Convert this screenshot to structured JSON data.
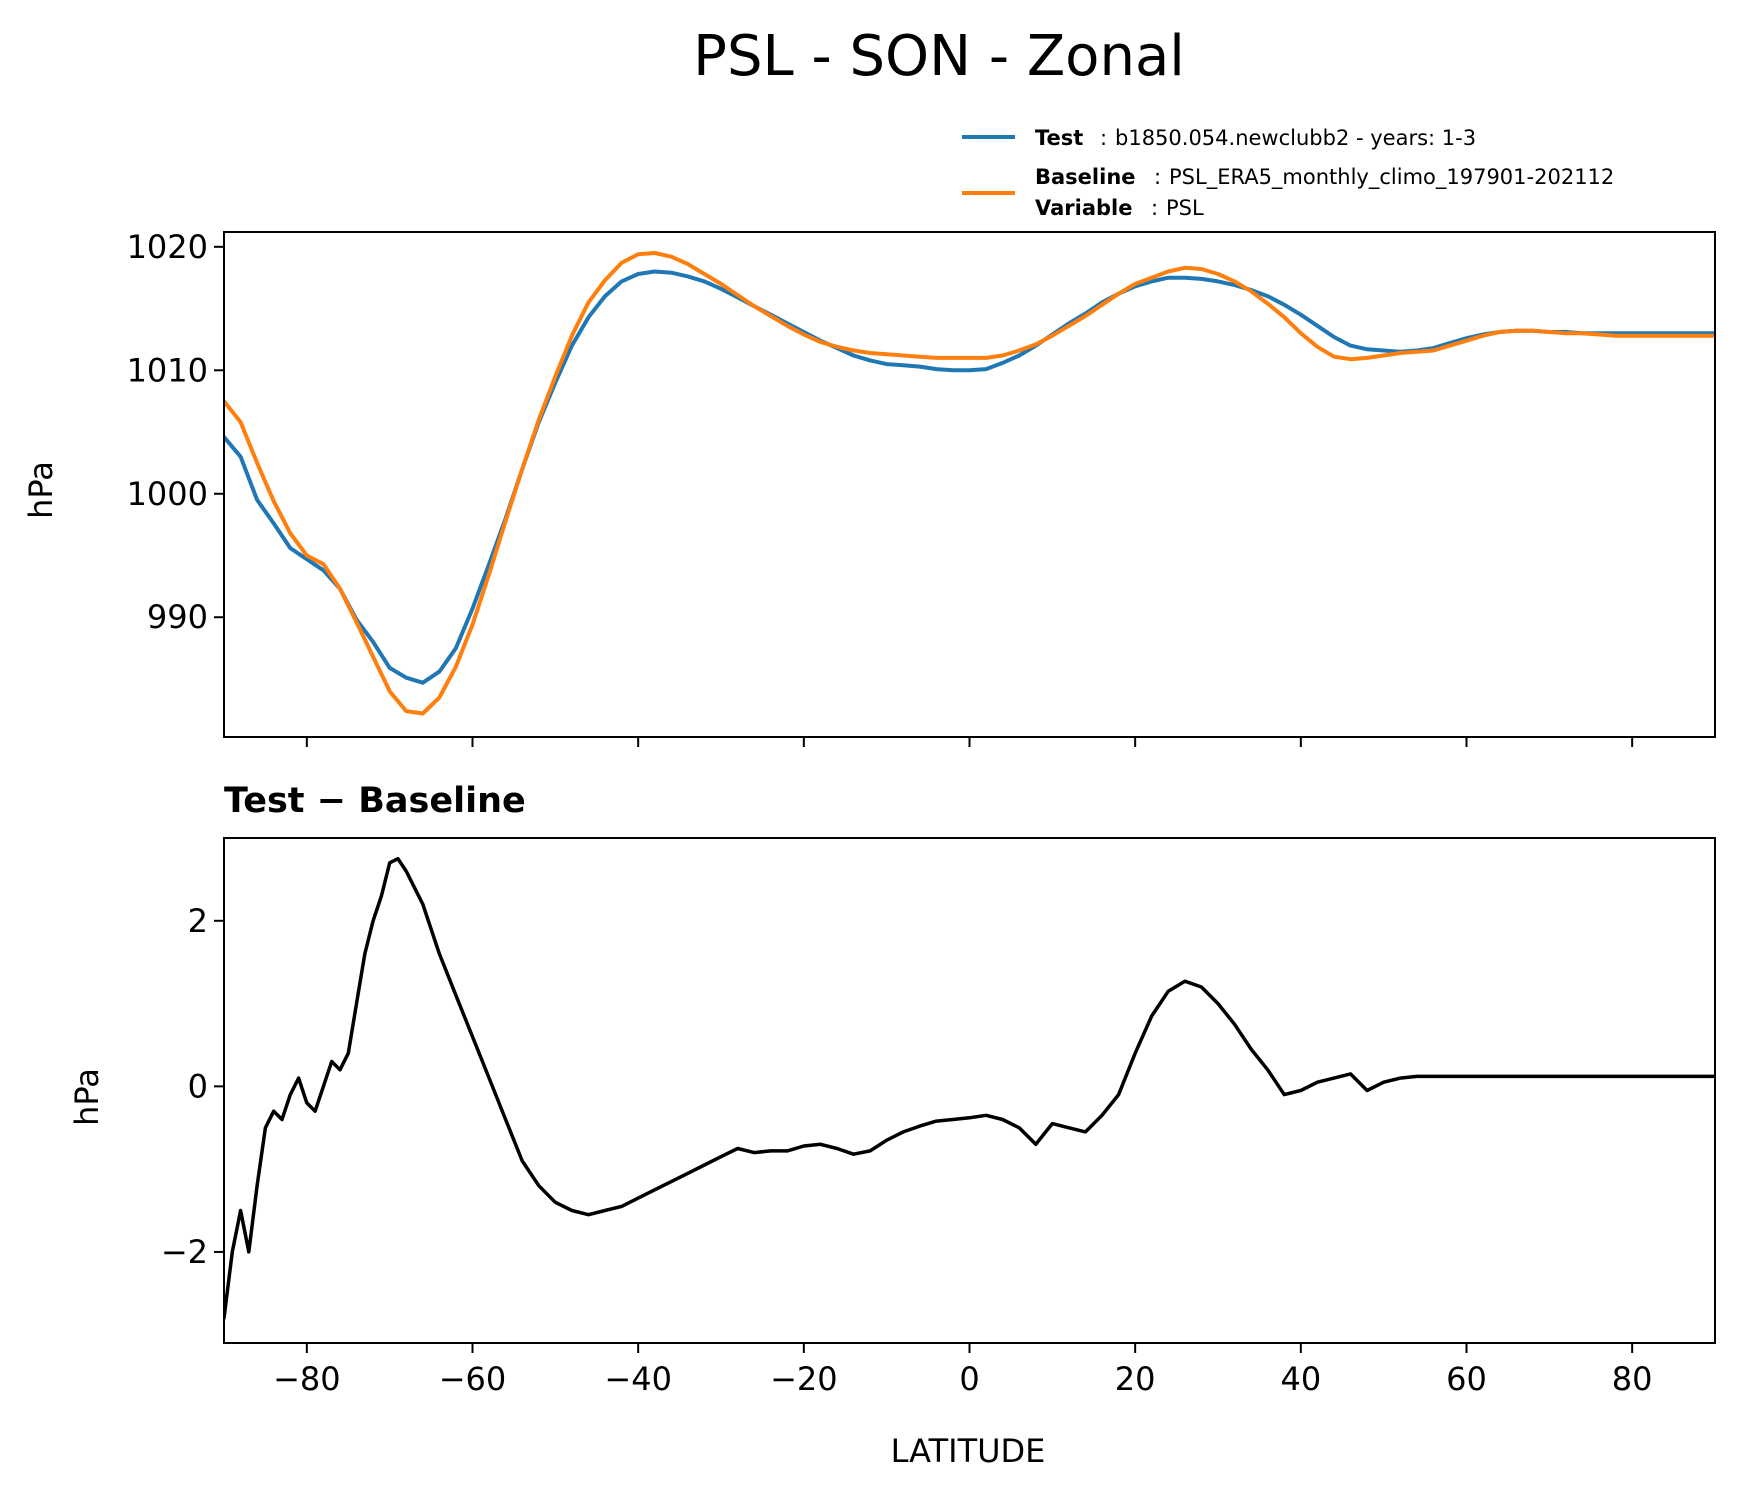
{
  "figure": {
    "title": "PSL - SON - Zonal"
  },
  "legend": {
    "entries": [
      {
        "key": "Test",
        "sep": ":",
        "value": "b1850.054.newclubb2 - years: 1-3",
        "color": "#1f77b4"
      },
      {
        "key": "Baseline",
        "sep": ":",
        "value": "PSL_ERA5_monthly_climo_197901-202112",
        "color": "#ff7f0e"
      },
      {
        "key": "Variable",
        "sep": ":",
        "value": "PSL"
      }
    ]
  },
  "chart_data": [
    {
      "type": "line",
      "title": "",
      "xlabel": "",
      "ylabel": "hPa",
      "xlim": [
        -90,
        90
      ],
      "ylim": [
        980.3,
        1021.2
      ],
      "xticks": [
        -80,
        -60,
        -40,
        -20,
        0,
        20,
        40,
        60,
        80
      ],
      "yticks": [
        990,
        1000,
        1010,
        1020
      ],
      "ytick_labels": [
        "990",
        "1000",
        "1010",
        "1020"
      ],
      "series": [
        {
          "name": "Test",
          "color": "#1f77b4",
          "x": [
            -90,
            -88,
            -86,
            -84,
            -82,
            -80,
            -78,
            -76,
            -74,
            -72,
            -70,
            -68,
            -66,
            -64,
            -62,
            -60,
            -58,
            -56,
            -54,
            -52,
            -50,
            -48,
            -46,
            -44,
            -42,
            -40,
            -38,
            -36,
            -34,
            -32,
            -30,
            -28,
            -26,
            -24,
            -22,
            -20,
            -18,
            -16,
            -14,
            -12,
            -10,
            -8,
            -6,
            -4,
            -2,
            0,
            2,
            4,
            6,
            8,
            10,
            12,
            14,
            16,
            18,
            20,
            22,
            24,
            26,
            28,
            30,
            32,
            34,
            36,
            38,
            40,
            42,
            44,
            46,
            48,
            50,
            52,
            54,
            56,
            58,
            60,
            62,
            64,
            66,
            68,
            70,
            72,
            74,
            76,
            78,
            80,
            82,
            84,
            86,
            88,
            90
          ],
          "values": [
            1004.6,
            1003.0,
            999.5,
            997.6,
            995.6,
            994.7,
            993.8,
            992.3,
            989.8,
            988.0,
            985.9,
            985.1,
            984.7,
            985.6,
            987.5,
            990.7,
            994.3,
            998.0,
            1002.0,
            1005.8,
            1009.0,
            1012.0,
            1014.3,
            1016.0,
            1017.2,
            1017.8,
            1018.0,
            1017.9,
            1017.6,
            1017.2,
            1016.6,
            1015.9,
            1015.2,
            1014.5,
            1013.8,
            1013.1,
            1012.4,
            1011.8,
            1011.2,
            1010.8,
            1010.5,
            1010.4,
            1010.3,
            1010.1,
            1010.0,
            1010.0,
            1010.1,
            1010.6,
            1011.2,
            1012.0,
            1012.9,
            1013.8,
            1014.6,
            1015.5,
            1016.2,
            1016.8,
            1017.2,
            1017.5,
            1017.5,
            1017.4,
            1017.2,
            1016.9,
            1016.5,
            1016.0,
            1015.3,
            1014.5,
            1013.6,
            1012.7,
            1012.0,
            1011.7,
            1011.6,
            1011.5,
            1011.6,
            1011.8,
            1012.2,
            1012.6,
            1012.9,
            1013.1,
            1013.2,
            1013.2,
            1013.1,
            1013.1,
            1013.0,
            1013.0,
            1013.0,
            1013.0,
            1013.0,
            1013.0,
            1013.0,
            1013.0,
            1013.0
          ]
        },
        {
          "name": "Baseline",
          "color": "#ff7f0e",
          "x": [
            -90,
            -88,
            -86,
            -84,
            -82,
            -80,
            -78,
            -76,
            -74,
            -72,
            -70,
            -68,
            -66,
            -64,
            -62,
            -60,
            -58,
            -56,
            -54,
            -52,
            -50,
            -48,
            -46,
            -44,
            -42,
            -40,
            -38,
            -36,
            -34,
            -32,
            -30,
            -28,
            -26,
            -24,
            -22,
            -20,
            -18,
            -16,
            -14,
            -12,
            -10,
            -8,
            -6,
            -4,
            -2,
            0,
            2,
            4,
            6,
            8,
            10,
            12,
            14,
            16,
            18,
            20,
            22,
            24,
            26,
            28,
            30,
            32,
            34,
            36,
            38,
            40,
            42,
            44,
            46,
            48,
            50,
            52,
            54,
            56,
            58,
            60,
            62,
            64,
            66,
            68,
            70,
            72,
            74,
            76,
            78,
            80,
            82,
            84,
            86,
            88,
            90
          ],
          "values": [
            1007.5,
            1005.8,
            1002.5,
            999.4,
            996.8,
            995.0,
            994.3,
            992.3,
            989.6,
            986.8,
            984.0,
            982.4,
            982.2,
            983.5,
            986.0,
            989.4,
            993.5,
            997.8,
            1002.0,
            1006.0,
            1009.5,
            1012.8,
            1015.5,
            1017.3,
            1018.7,
            1019.4,
            1019.5,
            1019.2,
            1018.6,
            1017.8,
            1017.0,
            1016.1,
            1015.2,
            1014.4,
            1013.6,
            1012.9,
            1012.3,
            1011.9,
            1011.6,
            1011.4,
            1011.3,
            1011.2,
            1011.1,
            1011.0,
            1011.0,
            1011.0,
            1011.0,
            1011.2,
            1011.6,
            1012.1,
            1012.8,
            1013.6,
            1014.4,
            1015.3,
            1016.2,
            1017.0,
            1017.5,
            1018.0,
            1018.3,
            1018.2,
            1017.8,
            1017.2,
            1016.4,
            1015.4,
            1014.3,
            1013.0,
            1011.9,
            1011.1,
            1010.9,
            1011.0,
            1011.2,
            1011.4,
            1011.5,
            1011.6,
            1012.0,
            1012.4,
            1012.8,
            1013.1,
            1013.2,
            1013.2,
            1013.1,
            1013.0,
            1013.0,
            1012.9,
            1012.8,
            1012.8,
            1012.8,
            1012.8,
            1012.8,
            1012.8,
            1012.8
          ]
        }
      ]
    },
    {
      "type": "line",
      "title": "Test − Baseline",
      "xlabel": "LATITUDE",
      "ylabel": "hPa",
      "xlim": [
        -90,
        90
      ],
      "ylim": [
        -3.1,
        3.0
      ],
      "xticks": [
        -80,
        -60,
        -40,
        -20,
        0,
        20,
        40,
        60,
        80
      ],
      "xtick_labels": [
        "−80",
        "−60",
        "−40",
        "−20",
        "0",
        "20",
        "40",
        "60",
        "80"
      ],
      "yticks": [
        -2,
        0,
        2
      ],
      "ytick_labels": [
        "−2",
        "0",
        "2"
      ],
      "series": [
        {
          "name": "Test − Baseline",
          "color": "#000000",
          "x": [
            -90,
            -89,
            -88,
            -87,
            -86,
            -85,
            -84,
            -83,
            -82,
            -81,
            -80,
            -79,
            -78,
            -77,
            -76,
            -75,
            -74,
            -73,
            -72,
            -71,
            -70,
            -69,
            -68,
            -67,
            -66,
            -65,
            -64,
            -62,
            -60,
            -58,
            -56,
            -54,
            -52,
            -50,
            -48,
            -46,
            -44,
            -42,
            -40,
            -38,
            -36,
            -34,
            -32,
            -30,
            -28,
            -26,
            -24,
            -22,
            -20,
            -18,
            -16,
            -14,
            -12,
            -10,
            -8,
            -6,
            -4,
            -2,
            0,
            2,
            4,
            6,
            8,
            10,
            12,
            14,
            16,
            18,
            20,
            22,
            24,
            26,
            28,
            30,
            32,
            34,
            36,
            37,
            38,
            40,
            42,
            44,
            46,
            48,
            50,
            52,
            54,
            56,
            58,
            60,
            62,
            64,
            66,
            68,
            70,
            72,
            74,
            76,
            78,
            80,
            82,
            84,
            86,
            88,
            90
          ],
          "values": [
            -2.8,
            -2.0,
            -1.5,
            -2.0,
            -1.2,
            -0.5,
            -0.3,
            -0.4,
            -0.1,
            0.1,
            -0.2,
            -0.3,
            0.0,
            0.3,
            0.2,
            0.4,
            1.0,
            1.6,
            2.0,
            2.3,
            2.7,
            2.75,
            2.6,
            2.4,
            2.2,
            1.9,
            1.6,
            1.1,
            0.6,
            0.1,
            -0.4,
            -0.9,
            -1.2,
            -1.4,
            -1.5,
            -1.55,
            -1.5,
            -1.45,
            -1.35,
            -1.25,
            -1.15,
            -1.05,
            -0.95,
            -0.85,
            -0.75,
            -0.8,
            -0.78,
            -0.78,
            -0.72,
            -0.7,
            -0.75,
            -0.82,
            -0.78,
            -0.65,
            -0.55,
            -0.48,
            -0.42,
            -0.4,
            -0.38,
            -0.35,
            -0.4,
            -0.5,
            -0.7,
            -0.45,
            -0.5,
            -0.55,
            -0.35,
            -0.1,
            0.4,
            0.85,
            1.15,
            1.27,
            1.2,
            1.0,
            0.75,
            0.45,
            0.2,
            0.05,
            -0.1,
            -0.05,
            0.05,
            0.1,
            0.15,
            -0.05,
            0.05,
            0.1,
            0.12,
            0.12,
            0.12,
            0.12,
            0.12,
            0.12,
            0.12,
            0.12,
            0.12,
            0.12,
            0.12,
            0.12,
            0.12,
            0.12,
            0.12,
            0.12,
            0.12,
            0.12,
            0.12
          ]
        }
      ]
    }
  ]
}
